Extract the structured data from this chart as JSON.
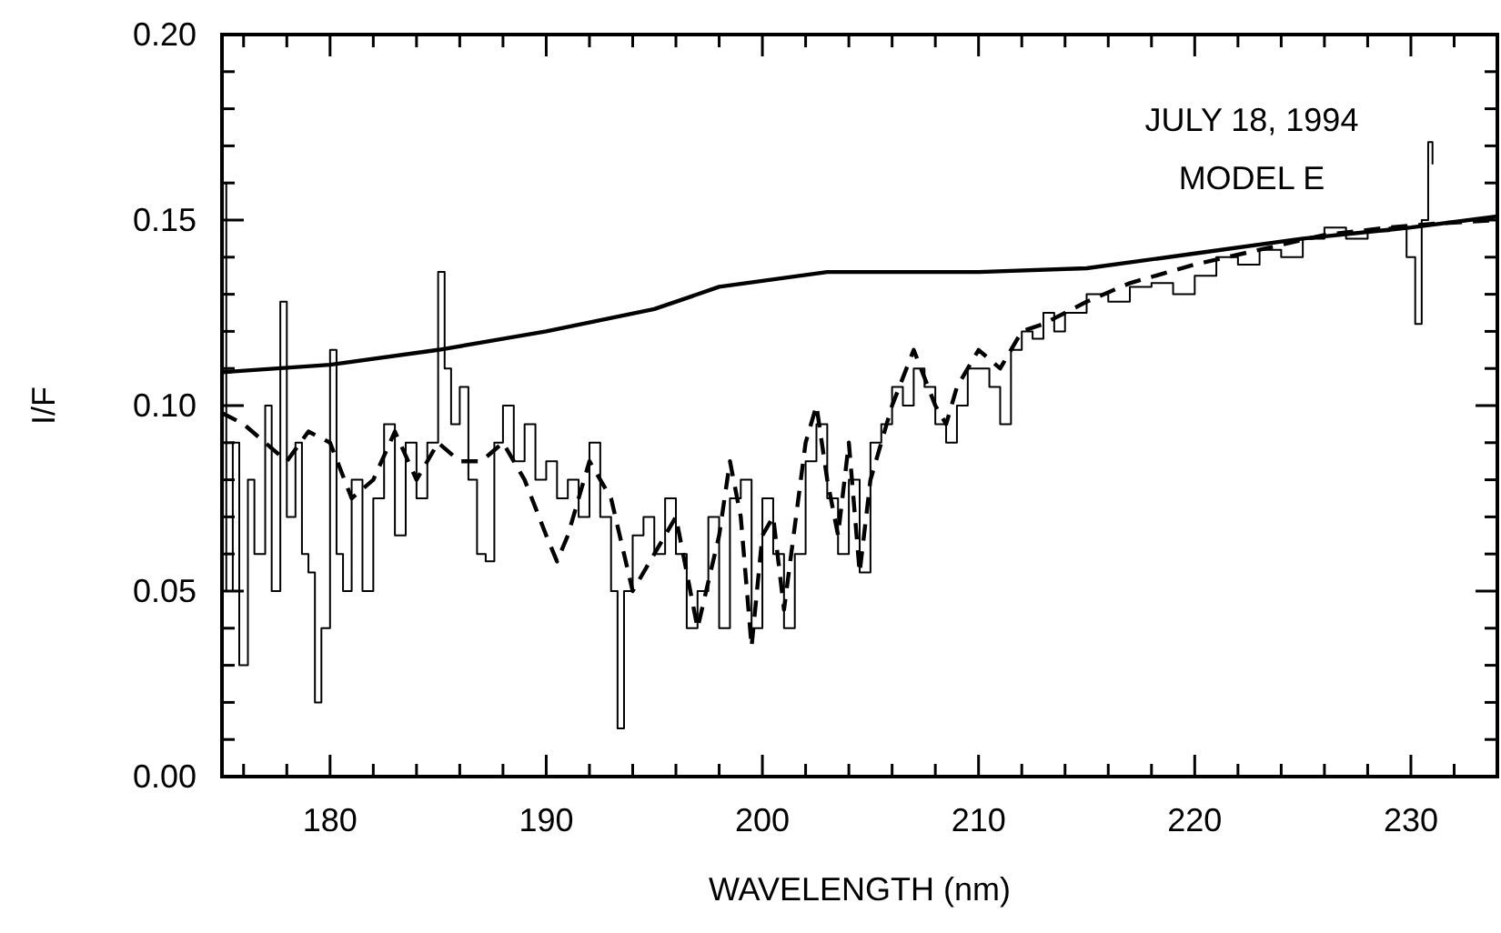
{
  "chart_data": {
    "type": "line",
    "xlabel": "WAVELENGTH (nm)",
    "ylabel": "I/F",
    "annotations": [
      "JULY 18, 1994",
      "MODEL E"
    ],
    "xlim": [
      175,
      234
    ],
    "ylim": [
      0,
      0.2
    ],
    "xticks": [
      {
        "value": 176,
        "label": null
      },
      {
        "value": 178,
        "label": null
      },
      180,
      {
        "value": 182,
        "label": null
      },
      {
        "value": 184,
        "label": null
      },
      {
        "value": 186,
        "label": null
      },
      {
        "value": 188,
        "label": null
      },
      190,
      {
        "value": 192,
        "label": null
      },
      {
        "value": 194,
        "label": null
      },
      {
        "value": 196,
        "label": null
      },
      {
        "value": 198,
        "label": null
      },
      200,
      {
        "value": 202,
        "label": null
      },
      {
        "value": 204,
        "label": null
      },
      {
        "value": 206,
        "label": null
      },
      {
        "value": 208,
        "label": null
      },
      210,
      {
        "value": 212,
        "label": null
      },
      {
        "value": 214,
        "label": null
      },
      {
        "value": 216,
        "label": null
      },
      {
        "value": 218,
        "label": null
      },
      220,
      {
        "value": 222,
        "label": null
      },
      {
        "value": 224,
        "label": null
      },
      {
        "value": 226,
        "label": null
      },
      {
        "value": 228,
        "label": null
      },
      230,
      {
        "value": 232,
        "label": null
      }
    ],
    "yticks": [
      {
        "value": 0,
        "label": "0.00"
      },
      {
        "value": 0.01,
        "label": null
      },
      {
        "value": 0.02,
        "label": null
      },
      {
        "value": 0.03,
        "label": null
      },
      {
        "value": 0.04,
        "label": null
      },
      {
        "value": 0.05,
        "label": "0.05"
      },
      {
        "value": 0.06,
        "label": null
      },
      {
        "value": 0.07,
        "label": null
      },
      {
        "value": 0.08,
        "label": null
      },
      {
        "value": 0.09,
        "label": null
      },
      {
        "value": 0.1,
        "label": "0.10"
      },
      {
        "value": 0.11,
        "label": null
      },
      {
        "value": 0.12,
        "label": null
      },
      {
        "value": 0.13,
        "label": null
      },
      {
        "value": 0.14,
        "label": null
      },
      {
        "value": 0.15,
        "label": "0.15"
      },
      {
        "value": 0.16,
        "label": null
      },
      {
        "value": 0.17,
        "label": null
      },
      {
        "value": 0.18,
        "label": null
      },
      {
        "value": 0.19,
        "label": null
      },
      {
        "value": 0.2,
        "label": "0.20"
      }
    ],
    "grid": false,
    "marker": "none",
    "series": [
      {
        "type": "step",
        "color": "#000000",
        "line_style": "solid",
        "x": [
          175.0,
          175.2,
          175.5,
          175.8,
          176.2,
          176.5,
          177.0,
          177.3,
          177.7,
          178.0,
          178.4,
          178.7,
          179.0,
          179.3,
          179.6,
          180.0,
          180.3,
          180.6,
          181.0,
          181.5,
          182.0,
          182.5,
          183.0,
          183.5,
          184.0,
          184.5,
          185.0,
          185.3,
          185.6,
          186.0,
          186.4,
          186.8,
          187.2,
          187.6,
          188.0,
          188.5,
          189.0,
          189.5,
          190.0,
          190.5,
          191.0,
          191.5,
          192.0,
          192.5,
          193.0,
          193.3,
          193.6,
          194.0,
          194.5,
          195.0,
          195.5,
          196.0,
          196.5,
          197.0,
          197.5,
          198.0,
          198.5,
          199.0,
          199.5,
          200.0,
          200.5,
          201.0,
          201.5,
          202.0,
          202.5,
          203.0,
          203.5,
          204.0,
          204.5,
          205.0,
          205.5,
          206.0,
          206.5,
          207.0,
          207.5,
          208.0,
          208.5,
          209.0,
          209.5,
          210.0,
          210.5,
          211.0,
          211.5,
          212.0,
          212.5,
          213.0,
          213.5,
          214.0,
          215.0,
          216.0,
          217.0,
          218.0,
          219.0,
          220.0,
          221.0,
          222.0,
          223.0,
          224.0,
          225.0,
          226.0,
          227.0,
          228.0,
          229.0,
          229.8,
          230.2,
          230.5,
          230.8,
          231.0
        ],
        "values": [
          0.16,
          0.05,
          0.09,
          0.03,
          0.08,
          0.06,
          0.1,
          0.05,
          0.128,
          0.07,
          0.09,
          0.06,
          0.055,
          0.02,
          0.04,
          0.115,
          0.06,
          0.05,
          0.08,
          0.05,
          0.075,
          0.095,
          0.065,
          0.09,
          0.075,
          0.09,
          0.136,
          0.11,
          0.095,
          0.105,
          0.08,
          0.06,
          0.058,
          0.09,
          0.1,
          0.085,
          0.095,
          0.08,
          0.085,
          0.075,
          0.08,
          0.07,
          0.09,
          0.07,
          0.05,
          0.013,
          0.05,
          0.065,
          0.07,
          0.06,
          0.075,
          0.06,
          0.04,
          0.05,
          0.07,
          0.04,
          0.075,
          0.08,
          0.04,
          0.075,
          0.06,
          0.04,
          0.06,
          0.085,
          0.095,
          0.075,
          0.06,
          0.08,
          0.055,
          0.09,
          0.095,
          0.105,
          0.1,
          0.11,
          0.105,
          0.095,
          0.09,
          0.1,
          0.11,
          0.11,
          0.105,
          0.095,
          0.115,
          0.12,
          0.118,
          0.125,
          0.12,
          0.125,
          0.13,
          0.128,
          0.132,
          0.133,
          0.13,
          0.135,
          0.14,
          0.138,
          0.142,
          0.14,
          0.145,
          0.148,
          0.145,
          0.147,
          0.148,
          0.14,
          0.122,
          0.15,
          0.171,
          0.165
        ]
      },
      {
        "color": "#000000",
        "line_style": "dashed",
        "x": [
          175,
          176,
          177,
          178,
          179,
          180,
          181,
          182,
          183,
          184,
          185,
          186,
          187,
          188,
          189,
          190,
          190.5,
          191,
          192,
          193,
          194,
          195,
          196,
          197,
          198,
          198.5,
          199,
          199.5,
          200,
          200.5,
          201,
          202,
          202.5,
          203,
          203.5,
          204,
          204.5,
          205,
          206,
          207,
          208,
          208.5,
          209,
          210,
          211,
          212,
          213,
          215,
          217,
          220,
          223,
          226,
          229,
          231,
          234
        ],
        "values": [
          0.098,
          0.095,
          0.09,
          0.085,
          0.093,
          0.09,
          0.075,
          0.08,
          0.093,
          0.08,
          0.09,
          0.085,
          0.085,
          0.09,
          0.08,
          0.065,
          0.058,
          0.065,
          0.085,
          0.075,
          0.05,
          0.06,
          0.07,
          0.04,
          0.065,
          0.085,
          0.07,
          0.035,
          0.065,
          0.07,
          0.045,
          0.09,
          0.1,
          0.08,
          0.065,
          0.09,
          0.055,
          0.08,
          0.1,
          0.115,
          0.1,
          0.095,
          0.105,
          0.115,
          0.11,
          0.12,
          0.122,
          0.128,
          0.133,
          0.138,
          0.142,
          0.146,
          0.148,
          0.149,
          0.15
        ]
      },
      {
        "color": "#000000",
        "line_style": "solid",
        "x": [
          175,
          180,
          185,
          187,
          190,
          195,
          198,
          203,
          210,
          215,
          220,
          225,
          230,
          234
        ],
        "values": [
          0.109,
          0.111,
          0.115,
          0.117,
          0.12,
          0.126,
          0.132,
          0.136,
          0.136,
          0.137,
          0.141,
          0.145,
          0.148,
          0.151
        ]
      }
    ]
  }
}
